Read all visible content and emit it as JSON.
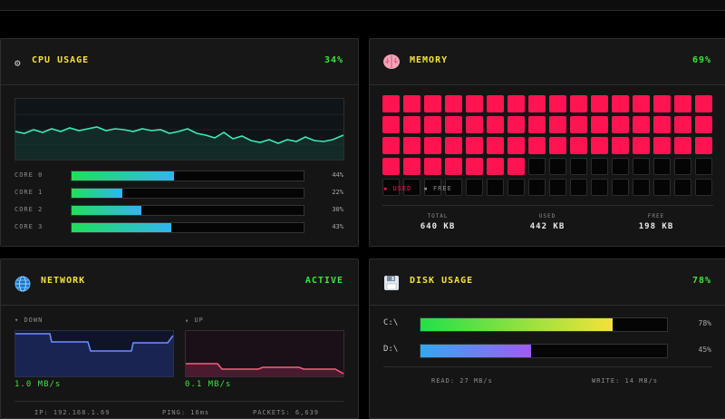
{
  "cpu": {
    "title": "CPU USAGE",
    "percent": "34%",
    "cores": [
      {
        "label": "CORE 0",
        "percent_text": "44%",
        "value": 44
      },
      {
        "label": "CORE 1",
        "percent_text": "22%",
        "value": 22
      },
      {
        "label": "CORE 2",
        "percent_text": "30%",
        "value": 30
      },
      {
        "label": "CORE 3",
        "percent_text": "43%",
        "value": 43
      }
    ]
  },
  "memory": {
    "title": "MEMORY",
    "percent": "69%",
    "legend_used": "USED",
    "legend_free": "FREE",
    "total_label": "TOTAL",
    "total_value": "640 KB",
    "used_label": "USED",
    "used_value": "442 KB",
    "free_label": "FREE",
    "free_value": "198 KB",
    "used_blocks": 55,
    "total_blocks": 80
  },
  "network": {
    "title": "NETWORK",
    "status": "ACTIVE",
    "down_label": "DOWN",
    "up_label": "UP",
    "down_rate": "1.0 MB/s",
    "up_rate": "0.1 MB/s",
    "ip": "IP: 192.168.1.69",
    "ping": "PING: 16ms",
    "packets": "PACKETS: 6,639"
  },
  "disk": {
    "title": "DISK USAGE",
    "percent": "78%",
    "drives": [
      {
        "label": "C:\\",
        "percent_text": "78%",
        "value": 78
      },
      {
        "label": "D:\\",
        "percent_text": "45%",
        "value": 45
      }
    ],
    "read": "READ: 27 MB/s",
    "write": "WRITE: 14 MB/s"
  },
  "colors": {
    "title_yellow": "#f3e23a",
    "status_green": "#39e639",
    "mem_used": "#ff1452",
    "cpu_line": "#3ee8b4"
  },
  "icons": [
    "gear-icon",
    "brain-icon",
    "globe-icon",
    "floppy-disk-icon"
  ]
}
